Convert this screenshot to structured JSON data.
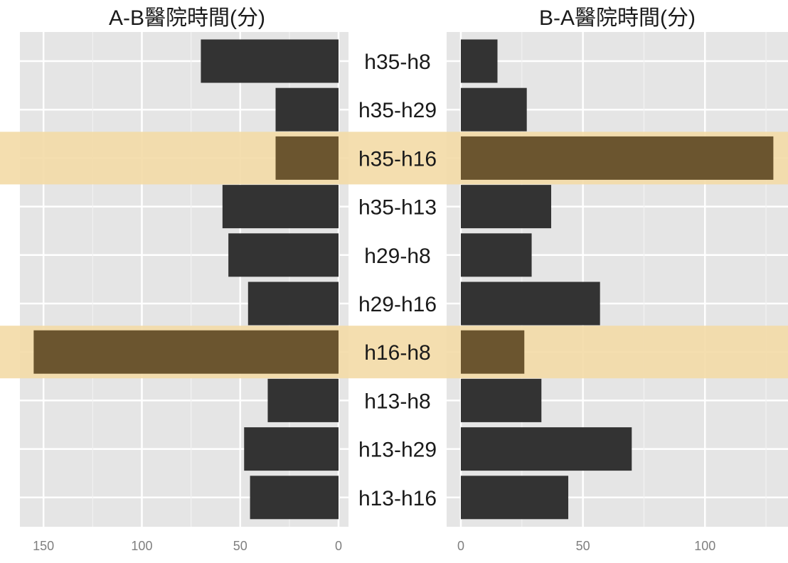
{
  "chart_data": {
    "type": "bar",
    "orientation": "horizontal",
    "layout": "back-to-back",
    "categories": [
      "h35-h8",
      "h35-h29",
      "h35-h16",
      "h35-h13",
      "h29-h8",
      "h29-h16",
      "h16-h8",
      "h13-h8",
      "h13-h29",
      "h13-h16"
    ],
    "highlighted_categories": [
      "h35-h16",
      "h16-h8"
    ],
    "panels": [
      {
        "title": "A-B醫院時間(分)",
        "direction": "reversed",
        "xlim": [
          0,
          162
        ],
        "ticks": [
          150,
          100,
          50,
          0
        ],
        "values": [
          70,
          32,
          32,
          59,
          56,
          46,
          155,
          36,
          48,
          45
        ]
      },
      {
        "title": "B-A醫院時間(分)",
        "direction": "normal",
        "xlim": [
          0,
          134
        ],
        "ticks": [
          0,
          50,
          100
        ],
        "values": [
          15,
          27,
          128,
          37,
          29,
          57,
          26,
          33,
          70,
          44
        ]
      }
    ],
    "grid": true,
    "legend": "none",
    "colors": {
      "panel_background": "#e5e5e5",
      "grid_major": "#ffffff",
      "grid_minor": "#f2f2f2",
      "bar": "#333333",
      "highlight_band": "#f3dba8",
      "highlight_bar": "#6b552f"
    }
  }
}
